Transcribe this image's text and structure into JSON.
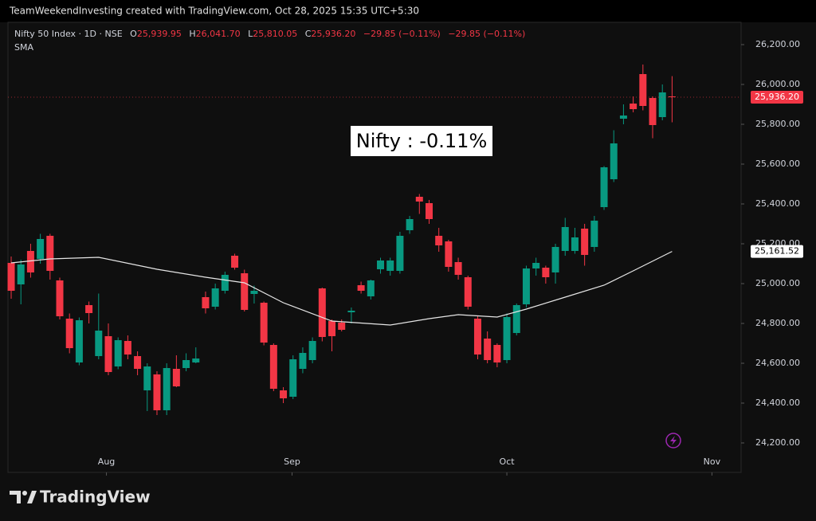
{
  "header": {
    "credit": "TeamWeekendInvesting created with TradingView.com, Oct 28, 2025 15:35 UTC+5:30",
    "symbol": "Nifty 50 Index · 1D · NSE",
    "ohlc": [
      {
        "key": "O",
        "value": "25,939.95"
      },
      {
        "key": "H",
        "value": "26,041.70"
      },
      {
        "key": "L",
        "value": "25,810.05"
      },
      {
        "key": "C",
        "value": "25,936.20"
      }
    ],
    "change": "−29.85 (−0.11%)",
    "change2": "−29.85 (−0.11%)"
  },
  "footer": {
    "brand": "TradingView"
  },
  "chart_data": {
    "type": "candlestick",
    "annotation": "Nifty : -0.11%",
    "x": [
      0,
      1,
      2,
      3,
      4,
      5,
      6,
      7,
      8,
      9,
      10,
      11,
      12,
      13,
      14,
      15,
      16,
      17,
      18,
      19,
      20,
      21,
      22,
      23,
      24,
      25,
      26,
      27,
      28,
      29,
      30,
      31,
      32,
      33,
      34,
      35,
      36,
      37,
      38,
      39,
      40,
      41,
      42,
      43,
      44,
      45,
      46,
      47,
      48,
      49,
      50,
      51,
      52,
      53,
      54,
      55,
      56,
      57,
      58,
      59,
      60,
      61,
      62,
      63,
      64,
      65,
      66,
      67,
      68
    ],
    "series": [
      {
        "name": "Nifty 50 Index",
        "up_color": "#089981",
        "down_color": "#f23645",
        "open": [
          25104,
          24996,
          25164,
          25124,
          25240,
          25016,
          24824,
          24604,
          24892,
          24636,
          24736,
          24584,
          24712,
          24636,
          24464,
          24544,
          24364,
          24572,
          24576,
          24604,
          24932,
          24884,
          24964,
          25140,
          25052,
          24948,
          24904,
          24692,
          24464,
          24432,
          24572,
          24616,
          24976,
          24812,
          24804,
          24856,
          24992,
          24936,
          25072,
          25064,
          25064,
          25268,
          25436,
          25404,
          25240,
          25212,
          25108,
          25032,
          24824,
          24724,
          24692,
          24616,
          24752,
          24896,
          25076,
          25080,
          25056,
          25164,
          25164,
          25276,
          25184,
          25384,
          25524,
          25828,
          25904,
          26052,
          25932,
          25836,
          25939.95
        ],
        "high": [
          25136,
          25120,
          25200,
          25250,
          25250,
          25030,
          24850,
          24830,
          24910,
          24950,
          24800,
          24730,
          24740,
          24660,
          24600,
          24560,
          24600,
          24640,
          24650,
          24680,
          24960,
          25000,
          25060,
          25150,
          25070,
          24990,
          24910,
          24700,
          24480,
          24640,
          24680,
          24730,
          24980,
          24820,
          24820,
          24880,
          25010,
          25020,
          25130,
          25130,
          25260,
          25340,
          25450,
          25420,
          25280,
          25220,
          25130,
          25040,
          24840,
          24760,
          24700,
          24850,
          24900,
          25090,
          25130,
          25090,
          25200,
          25330,
          25280,
          25300,
          25340,
          25590,
          25770,
          25900,
          25940,
          26100,
          25940,
          26000,
          26041.7
        ],
        "low": [
          24924,
          24896,
          25030,
          25100,
          25020,
          24820,
          24650,
          24590,
          24800,
          24620,
          24540,
          24570,
          24620,
          24540,
          24360,
          24340,
          24340,
          24480,
          24560,
          24600,
          24850,
          24870,
          24950,
          25070,
          24860,
          24900,
          24690,
          24460,
          24400,
          24420,
          24550,
          24600,
          24710,
          24660,
          24760,
          24800,
          24950,
          24920,
          25050,
          25040,
          25050,
          25250,
          25350,
          25300,
          25160,
          25060,
          25020,
          24870,
          24620,
          24600,
          24580,
          24600,
          24740,
          24880,
          25040,
          25000,
          25000,
          25140,
          25150,
          25090,
          25160,
          25370,
          25510,
          25800,
          25860,
          25870,
          25730,
          25820,
          25810.05
        ],
        "close": [
          24964,
          25096,
          25056,
          25224,
          25064,
          24836,
          24676,
          24816,
          24852,
          24764,
          24556,
          24716,
          24644,
          24572,
          24584,
          24364,
          24576,
          24484,
          24616,
          24624,
          24876,
          24976,
          25044,
          25080,
          24868,
          24964,
          24704,
          24472,
          24424,
          24620,
          24652,
          24712,
          24732,
          24736,
          24768,
          24864,
          24964,
          25016,
          25116,
          25116,
          25240,
          25324,
          25412,
          25324,
          25192,
          25084,
          25044,
          24884,
          24644,
          24616,
          24604,
          24832,
          24892,
          25076,
          25104,
          25032,
          25184,
          25284,
          25232,
          25144,
          25316,
          25584,
          25704,
          25844,
          25876,
          25892,
          25796,
          25960,
          25936.2
        ],
        "last_label": {
          "value": 25936.2,
          "label": "25,936.20"
        }
      }
    ],
    "lines": [
      {
        "name": "SMA",
        "color": "#e6e6e6",
        "x": [
          0,
          4,
          9,
          15,
          20,
          24,
          28,
          33,
          39,
          43,
          46,
          50,
          53,
          57,
          61,
          64,
          68
        ],
        "values": [
          25104,
          25124,
          25132,
          25072,
          25032,
          25004,
          24904,
          24812,
          24792,
          24824,
          24844,
          24832,
          24872,
          24932,
          24992,
          25064,
          25161.52
        ],
        "last_label": {
          "value": 25161.52,
          "label": "25,161.52"
        }
      }
    ],
    "xlim": [
      -0.33,
      75.1
    ],
    "xticks": [
      {
        "value": 9.8,
        "label": "Aug"
      },
      {
        "value": 28.9,
        "label": "Sep"
      },
      {
        "value": 51,
        "label": "Oct"
      },
      {
        "value": 72.1,
        "label": "Nov"
      }
    ],
    "ylim": [
      24052,
      26312
    ],
    "yticks": [
      {
        "value": 24200,
        "label": "24,200.00"
      },
      {
        "value": 24400,
        "label": "24,400.00"
      },
      {
        "value": 24600,
        "label": "24,600.00"
      },
      {
        "value": 24800,
        "label": "24,800.00"
      },
      {
        "value": 25000,
        "label": "25,000.00"
      },
      {
        "value": 25200,
        "label": "25,200.00"
      },
      {
        "value": 25400,
        "label": "25,400.00"
      },
      {
        "value": 25600,
        "label": "25,600.00"
      },
      {
        "value": 25800,
        "label": "25,800.00"
      },
      {
        "value": 26000,
        "label": "26,000.00"
      },
      {
        "value": 26200,
        "label": "26,200.00"
      }
    ],
    "grid": false
  }
}
